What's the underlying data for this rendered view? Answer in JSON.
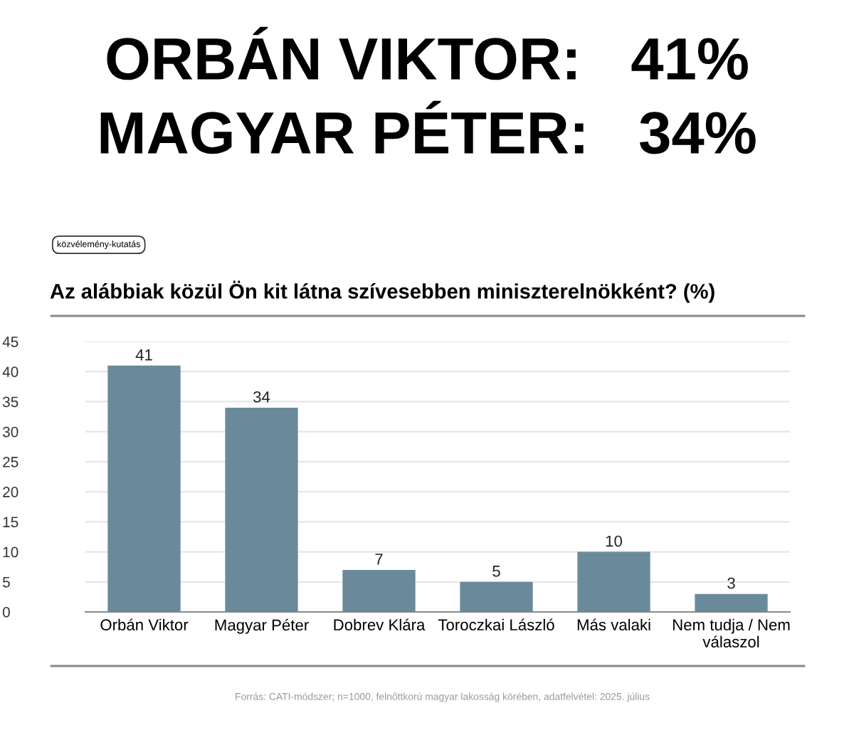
{
  "chart_data": {
    "type": "bar",
    "title": "Az alábbiak közül Ön kit látna szívesebben miniszterelnökként? (%)",
    "categories": [
      "Orbán Viktor",
      "Magyar Péter",
      "Dobrev Klára",
      "Toroczkai László",
      "Más valaki",
      "Nem tudja / Nem\nválaszol"
    ],
    "values": [
      41,
      34,
      7,
      5,
      10,
      3
    ],
    "color": "#6a8a9c",
    "ylim": [
      0,
      45
    ],
    "yticks": [
      0,
      5,
      10,
      15,
      20,
      25,
      30,
      35,
      40,
      45
    ],
    "grid": "y",
    "data_labels": true,
    "annotations": [
      "ORBÁN VIKTOR:   41%",
      "MAGYAR PÉTER:   34%",
      "közvélemény-kutatás",
      "Forrás: CATI-módszer; n=1000, felnőttkorú magyar lakosság körében, adatfelvétel: 2025. július"
    ]
  }
}
